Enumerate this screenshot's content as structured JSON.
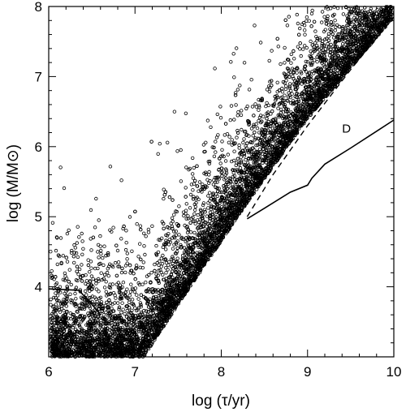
{
  "chart_data": {
    "type": "scatter",
    "title": "",
    "xlabel": "log (τ/yr)",
    "ylabel": "log (M/M⊙)",
    "xlim": [
      6,
      10
    ],
    "ylim": [
      3,
      8
    ],
    "x_ticks": [
      "6",
      "7",
      "8",
      "9",
      "10"
    ],
    "y_ticks": [
      "4",
      "5",
      "6",
      "7",
      "8"
    ],
    "grid": false,
    "legend": "none",
    "point_style": "open circles",
    "point_count_approx": 7000,
    "lower_envelope": [
      [
        7.1,
        3.0
      ],
      [
        7.5,
        3.75
      ],
      [
        8.0,
        4.65
      ],
      [
        8.3,
        5.2
      ],
      [
        9.0,
        6.4
      ],
      [
        10.0,
        7.85
      ]
    ],
    "series": [
      {
        "style": "solid",
        "x": [
          8.3,
          8.5,
          8.8,
          9.0,
          9.05,
          9.2,
          9.5,
          9.8,
          10.0
        ],
        "y": [
          4.97,
          5.12,
          5.35,
          5.45,
          5.55,
          5.75,
          5.98,
          6.22,
          6.38
        ]
      },
      {
        "style": "dashed",
        "x": [
          8.3,
          8.6,
          9.0,
          9.5,
          10.0
        ],
        "y": [
          5.0,
          5.6,
          6.3,
          7.1,
          7.85
        ]
      },
      {
        "style": "solid",
        "x": [
          6.0,
          6.35,
          6.5,
          6.6
        ],
        "y": [
          3.97,
          3.95,
          3.75,
          3.6
        ]
      }
    ],
    "annotations": [
      {
        "text": "D",
        "x": 9.4,
        "y": 6.2
      }
    ]
  }
}
